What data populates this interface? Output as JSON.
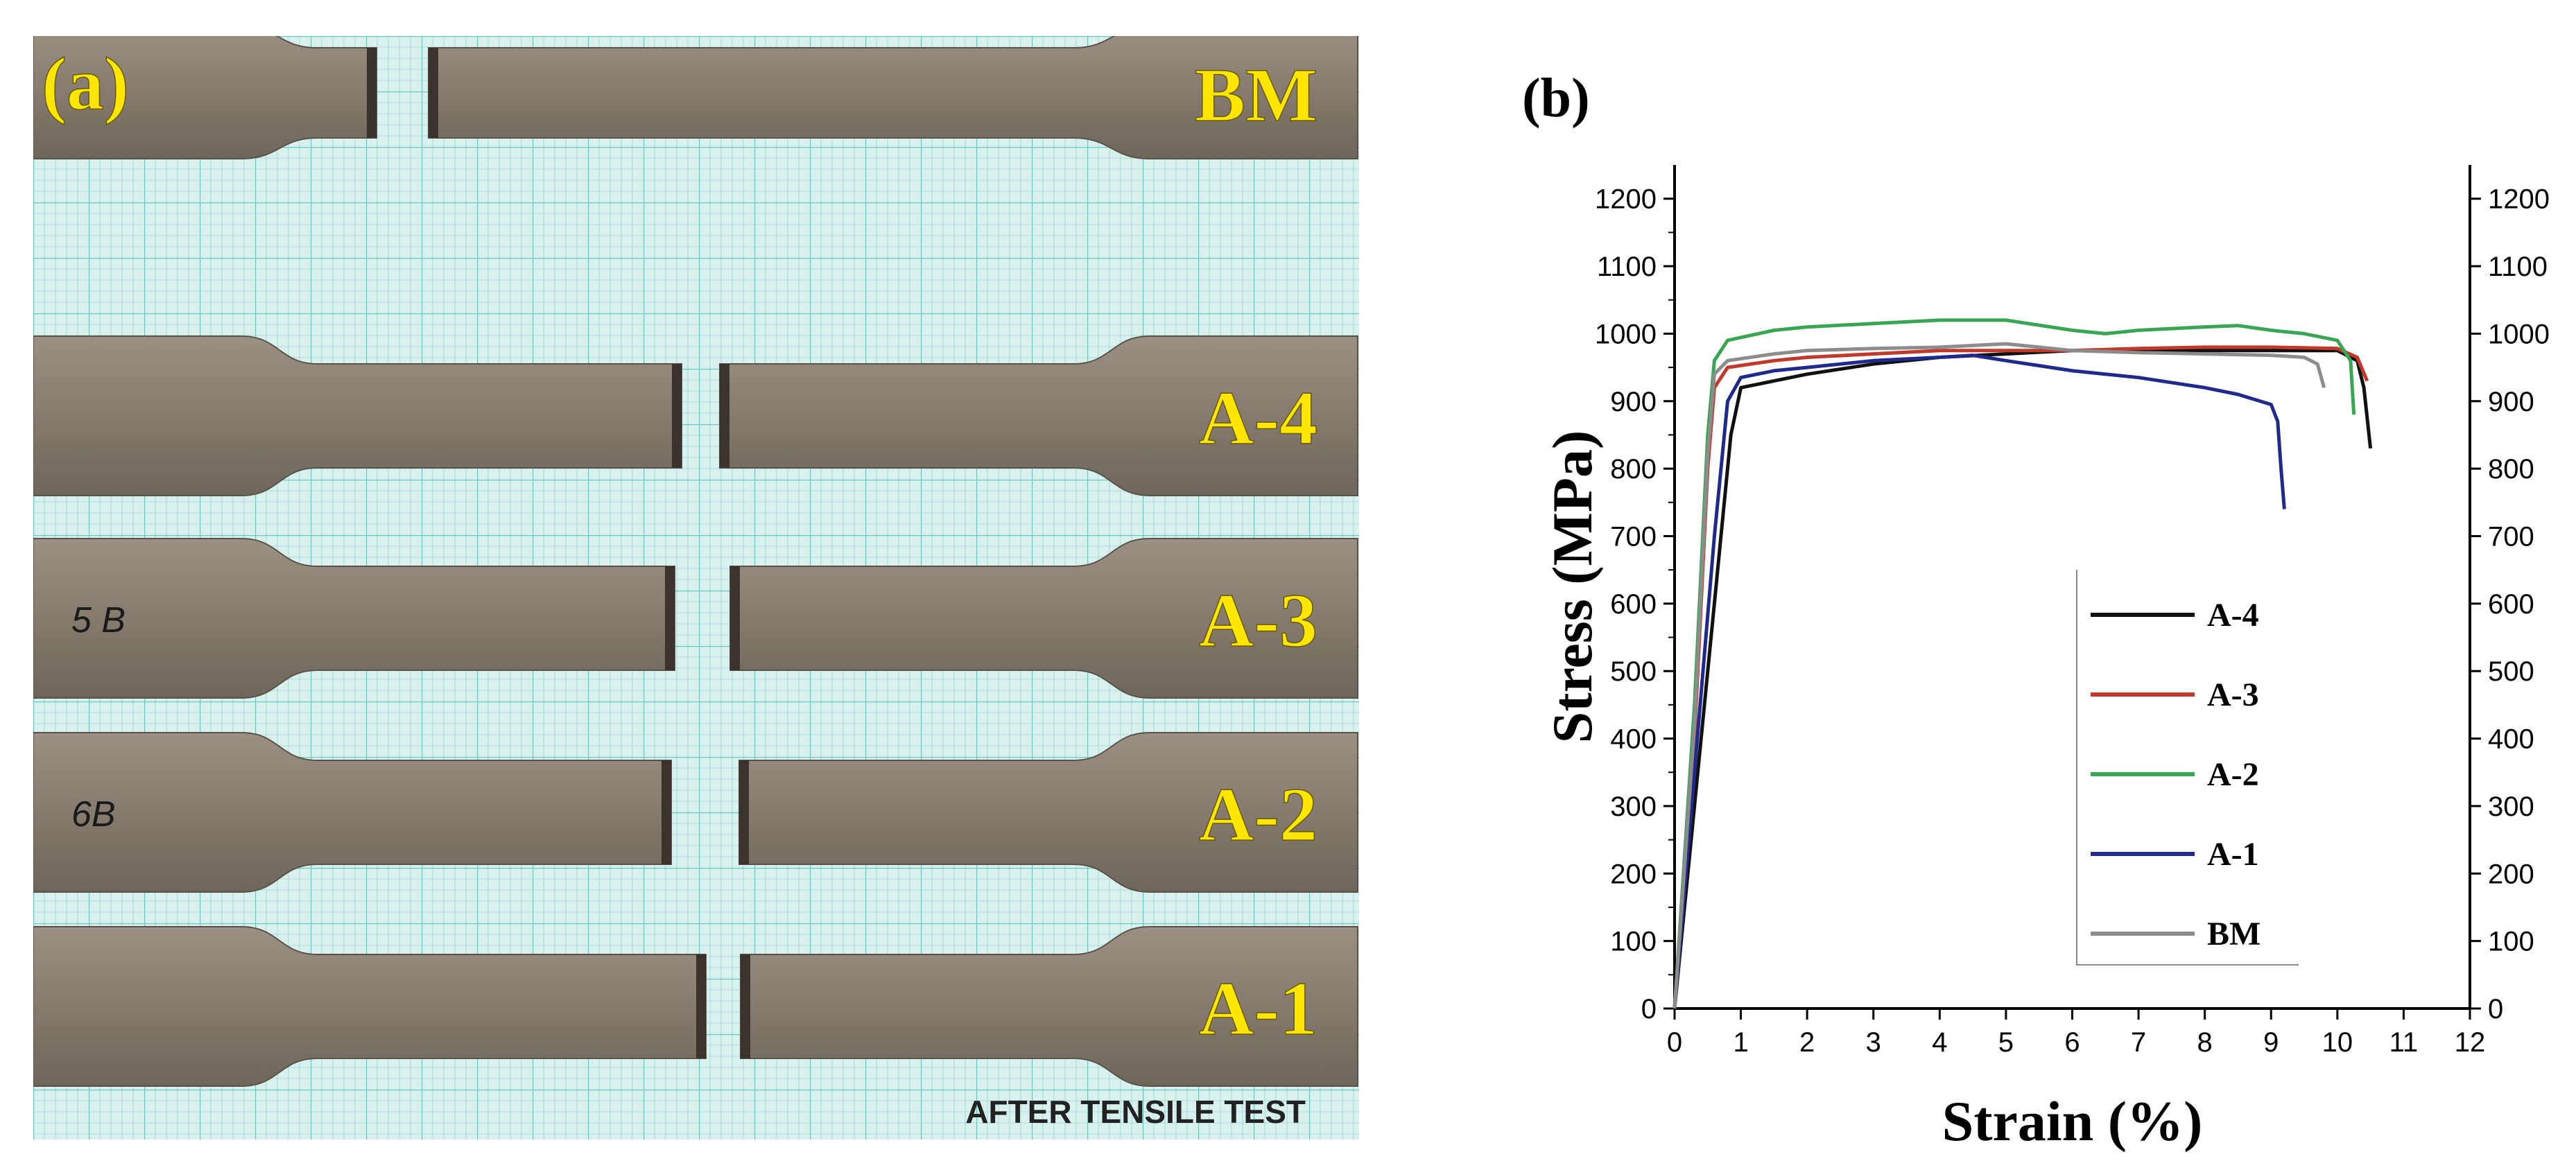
{
  "panel_a": {
    "label": "(a)",
    "caption": "AFTER TENSILE TEST",
    "specimens": [
      {
        "id": "BM",
        "label": "BM",
        "marking": ""
      },
      {
        "id": "A-4",
        "label": "A-4",
        "marking": ""
      },
      {
        "id": "A-3",
        "label": "A-3",
        "marking": "5 B"
      },
      {
        "id": "A-2",
        "label": "A-2",
        "marking": "6B"
      },
      {
        "id": "A-1",
        "label": "A-1",
        "marking": ""
      }
    ],
    "colors": {
      "grid_background": "#d8f1ee",
      "grid_line": "#6fc8bd",
      "label": "#ffe600",
      "specimen": "#857b6e"
    }
  },
  "panel_b": {
    "label": "(b)",
    "chart_data": {
      "type": "line",
      "xlabel": "Strain (%)",
      "ylabel": "Stress (MPa)",
      "xlim": [
        0,
        12
      ],
      "ylim": [
        0,
        1250
      ],
      "xticks": [
        0,
        1,
        2,
        3,
        4,
        5,
        6,
        7,
        8,
        9,
        10,
        11,
        12
      ],
      "yticks": [
        0,
        100,
        200,
        300,
        400,
        500,
        600,
        700,
        800,
        900,
        1000,
        1100,
        1200
      ],
      "right_axis_ticks": [
        0,
        100,
        200,
        300,
        400,
        500,
        600,
        700,
        800,
        900,
        1000,
        1100,
        1200
      ],
      "grid": false,
      "legend_position": "bottom-right",
      "series": [
        {
          "name": "A-4",
          "color": "#111111",
          "x": [
            0,
            0.3,
            0.6,
            0.85,
            1.0,
            1.5,
            2,
            3,
            4,
            5,
            6,
            7,
            8,
            9,
            10,
            10.3,
            10.4,
            10.5
          ],
          "y": [
            0,
            300,
            600,
            850,
            920,
            930,
            940,
            955,
            965,
            970,
            975,
            975,
            975,
            975,
            975,
            960,
            920,
            830
          ]
        },
        {
          "name": "A-3",
          "color": "#c0392b",
          "x": [
            0,
            0.3,
            0.5,
            0.6,
            0.8,
            1.5,
            2,
            3,
            4,
            5,
            6,
            7,
            8,
            9,
            10,
            10.3,
            10.45
          ],
          "y": [
            0,
            400,
            800,
            920,
            950,
            960,
            965,
            970,
            975,
            975,
            975,
            978,
            980,
            980,
            978,
            965,
            930
          ]
        },
        {
          "name": "A-2",
          "color": "#3aa655",
          "x": [
            0,
            0.3,
            0.5,
            0.6,
            0.8,
            1.5,
            2,
            3,
            4,
            5,
            6,
            6.5,
            7,
            8,
            8.5,
            9,
            9.5,
            10,
            10.2,
            10.25
          ],
          "y": [
            0,
            450,
            850,
            960,
            990,
            1005,
            1010,
            1015,
            1020,
            1020,
            1005,
            1000,
            1005,
            1010,
            1012,
            1005,
            1000,
            990,
            960,
            880
          ]
        },
        {
          "name": "A-1",
          "color": "#1f2a8c",
          "x": [
            0,
            0.3,
            0.6,
            0.8,
            1.0,
            1.5,
            2,
            3,
            4,
            4.5,
            5,
            6,
            7,
            8,
            8.5,
            9,
            9.1,
            9.15,
            9.2
          ],
          "y": [
            0,
            350,
            700,
            900,
            935,
            945,
            950,
            960,
            965,
            968,
            960,
            945,
            935,
            920,
            910,
            895,
            870,
            800,
            740
          ]
        },
        {
          "name": "BM",
          "color": "#8c8c8c",
          "x": [
            0,
            0.3,
            0.5,
            0.6,
            0.8,
            1.5,
            2,
            3,
            4,
            5,
            6,
            7,
            8,
            9,
            9.5,
            9.7,
            9.8
          ],
          "y": [
            0,
            420,
            820,
            940,
            960,
            970,
            975,
            978,
            980,
            985,
            975,
            972,
            970,
            968,
            965,
            955,
            920
          ]
        }
      ]
    }
  }
}
